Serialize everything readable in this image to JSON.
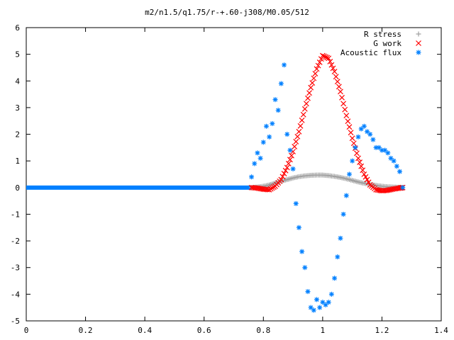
{
  "chart_data": {
    "type": "scatter",
    "title": "m2/n1.5/q1.75/r-+.60-j308/M0.05/512",
    "xlabel": "",
    "ylabel": "",
    "xlim": [
      0,
      1.4
    ],
    "ylim": [
      -5,
      6
    ],
    "xticks": [
      "0",
      "0.2",
      "0.4",
      "0.6",
      "0.8",
      "1",
      "1.2",
      "1.4"
    ],
    "yticks": [
      "-5",
      "-4",
      "-3",
      "-2",
      "-1",
      "0",
      "1",
      "2",
      "3",
      "4",
      "5",
      "6"
    ],
    "grid": false,
    "legend_position": "top-right",
    "series": [
      {
        "name": "R stress",
        "marker": "plus",
        "color": "#a0a0a0",
        "points": [
          [
            0.76,
            0.0
          ],
          [
            0.78,
            0.02
          ],
          [
            0.8,
            0.05
          ],
          [
            0.82,
            0.1
          ],
          [
            0.84,
            0.17
          ],
          [
            0.86,
            0.24
          ],
          [
            0.88,
            0.3
          ],
          [
            0.9,
            0.36
          ],
          [
            0.92,
            0.41
          ],
          [
            0.94,
            0.44
          ],
          [
            0.96,
            0.46
          ],
          [
            0.98,
            0.47
          ],
          [
            1.0,
            0.47
          ],
          [
            1.02,
            0.45
          ],
          [
            1.04,
            0.42
          ],
          [
            1.06,
            0.38
          ],
          [
            1.08,
            0.33
          ],
          [
            1.1,
            0.27
          ],
          [
            1.12,
            0.21
          ],
          [
            1.14,
            0.16
          ],
          [
            1.16,
            0.12
          ],
          [
            1.18,
            0.08
          ],
          [
            1.2,
            0.05
          ],
          [
            1.22,
            0.03
          ],
          [
            1.24,
            0.02
          ],
          [
            1.26,
            0.01
          ],
          [
            1.27,
            0.0
          ]
        ]
      },
      {
        "name": "G work",
        "marker": "cross",
        "color": "#ff0000",
        "points": [
          [
            0.76,
            0.0
          ],
          [
            0.78,
            -0.02
          ],
          [
            0.8,
            -0.06
          ],
          [
            0.82,
            -0.08
          ],
          [
            0.84,
            0.05
          ],
          [
            0.86,
            0.3
          ],
          [
            0.88,
            0.75
          ],
          [
            0.9,
            1.35
          ],
          [
            0.92,
            2.1
          ],
          [
            0.94,
            2.95
          ],
          [
            0.96,
            3.75
          ],
          [
            0.98,
            4.45
          ],
          [
            1.0,
            4.95
          ],
          [
            1.02,
            4.85
          ],
          [
            1.04,
            4.35
          ],
          [
            1.06,
            3.6
          ],
          [
            1.08,
            2.7
          ],
          [
            1.1,
            1.85
          ],
          [
            1.12,
            1.1
          ],
          [
            1.14,
            0.5
          ],
          [
            1.16,
            0.1
          ],
          [
            1.18,
            -0.08
          ],
          [
            1.2,
            -0.12
          ],
          [
            1.22,
            -0.1
          ],
          [
            1.24,
            -0.05
          ],
          [
            1.26,
            -0.02
          ],
          [
            1.27,
            0.0
          ]
        ]
      },
      {
        "name": "Acoustic flux",
        "marker": "star",
        "color": "#0080ff",
        "points": [
          [
            0.76,
            0.4
          ],
          [
            0.77,
            0.9
          ],
          [
            0.78,
            1.3
          ],
          [
            0.79,
            1.1
          ],
          [
            0.8,
            1.7
          ],
          [
            0.81,
            2.3
          ],
          [
            0.82,
            1.9
          ],
          [
            0.83,
            2.4
          ],
          [
            0.84,
            3.3
          ],
          [
            0.85,
            2.9
          ],
          [
            0.86,
            3.9
          ],
          [
            0.87,
            4.6
          ],
          [
            0.88,
            2.0
          ],
          [
            0.89,
            1.4
          ],
          [
            0.9,
            0.7
          ],
          [
            0.91,
            -0.6
          ],
          [
            0.92,
            -1.5
          ],
          [
            0.93,
            -2.4
          ],
          [
            0.94,
            -3.0
          ],
          [
            0.95,
            -3.9
          ],
          [
            0.96,
            -4.5
          ],
          [
            0.97,
            -4.6
          ],
          [
            0.98,
            -4.2
          ],
          [
            0.99,
            -4.5
          ],
          [
            1.0,
            -4.3
          ],
          [
            1.01,
            -4.4
          ],
          [
            1.02,
            -4.3
          ],
          [
            1.03,
            -4.0
          ],
          [
            1.04,
            -3.4
          ],
          [
            1.05,
            -2.6
          ],
          [
            1.06,
            -1.9
          ],
          [
            1.07,
            -1.0
          ],
          [
            1.08,
            -0.3
          ],
          [
            1.09,
            0.5
          ],
          [
            1.1,
            1.0
          ],
          [
            1.11,
            1.5
          ],
          [
            1.12,
            1.9
          ],
          [
            1.13,
            2.2
          ],
          [
            1.14,
            2.3
          ],
          [
            1.15,
            2.1
          ],
          [
            1.16,
            2.0
          ],
          [
            1.17,
            1.8
          ],
          [
            1.18,
            1.5
          ],
          [
            1.19,
            1.5
          ],
          [
            1.2,
            1.4
          ],
          [
            1.21,
            1.4
          ],
          [
            1.22,
            1.3
          ],
          [
            1.23,
            1.1
          ],
          [
            1.24,
            1.0
          ],
          [
            1.25,
            0.8
          ],
          [
            1.26,
            0.6
          ],
          [
            1.27,
            0.0
          ]
        ]
      }
    ],
    "baseline_zero_until_x": 0.76
  }
}
